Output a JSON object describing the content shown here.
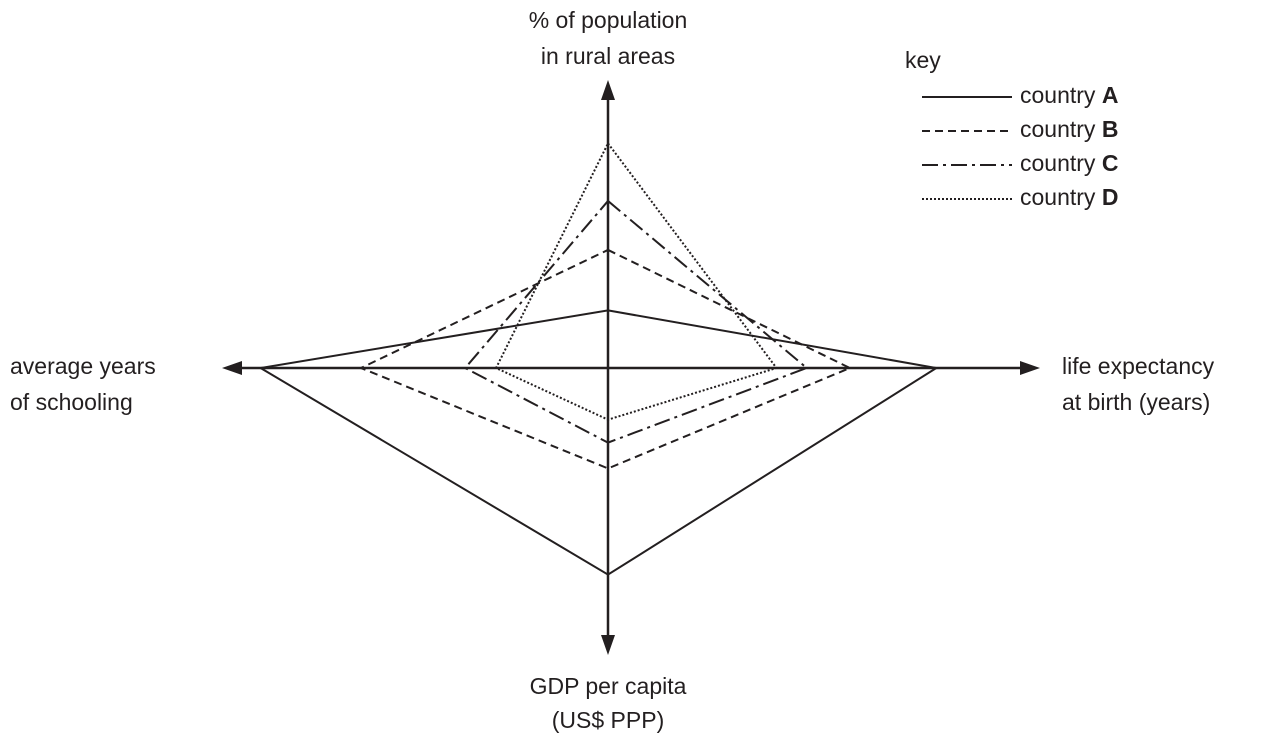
{
  "chart_data": {
    "type": "radar",
    "categories": [
      [
        "% of population",
        "in rural areas"
      ],
      [
        "life expectancy",
        "at birth (years)"
      ],
      [
        "GDP per capita",
        "(US$ PPP)"
      ],
      [
        "average years",
        "of schooling"
      ]
    ],
    "rlim": [
      0,
      100
    ],
    "legend_title": "key",
    "legend_position": "upper right",
    "series": [
      {
        "name": "country A",
        "color": "#231f20",
        "line_style": "solid",
        "values": [
          20,
          76,
          72,
          90
        ]
      },
      {
        "name": "country B",
        "color": "#231f20",
        "line_style": "dashed",
        "values": [
          41,
          56,
          35,
          64
        ]
      },
      {
        "name": "country C",
        "color": "#231f20",
        "line_style": "dashdot",
        "values": [
          58,
          46,
          26,
          37
        ]
      },
      {
        "name": "country D",
        "color": "#231f20",
        "line_style": "dotted",
        "values": [
          78,
          39,
          18,
          29
        ]
      }
    ]
  }
}
